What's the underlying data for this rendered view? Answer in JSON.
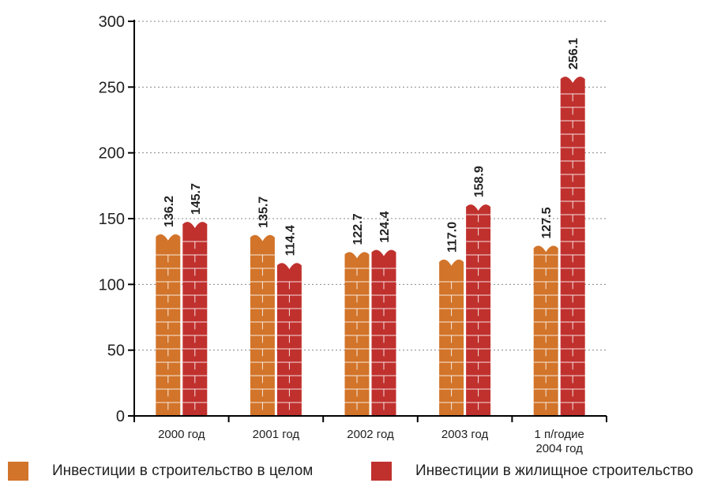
{
  "chart_data": {
    "type": "bar",
    "title": "",
    "xlabel": "",
    "ylabel": "",
    "ylim": [
      0,
      300
    ],
    "yticks": [
      0,
      50,
      100,
      150,
      200,
      250,
      300
    ],
    "grid": "horizontal dotted",
    "legend_position": "bottom",
    "categories": [
      [
        "2000 год"
      ],
      [
        "2001 год"
      ],
      [
        "2002 год"
      ],
      [
        "2003 год"
      ],
      [
        "1 п/годие",
        "2004 год"
      ]
    ],
    "series": [
      {
        "name": "Инвестиции в строительство в целом",
        "color": "#d2742a",
        "values": [
          136.2,
          135.7,
          122.7,
          117.0,
          127.5
        ],
        "labels": [
          "136.2",
          "135.7",
          "122.7",
          "117.0",
          "127.5"
        ]
      },
      {
        "name": "Инвестиции в жилищное строительство",
        "color": "#c0312e",
        "values": [
          145.7,
          114.4,
          124.4,
          158.9,
          256.1
        ],
        "labels": [
          "145.7",
          "114.4",
          "124.4",
          "158.9",
          "256.1"
        ]
      }
    ]
  }
}
